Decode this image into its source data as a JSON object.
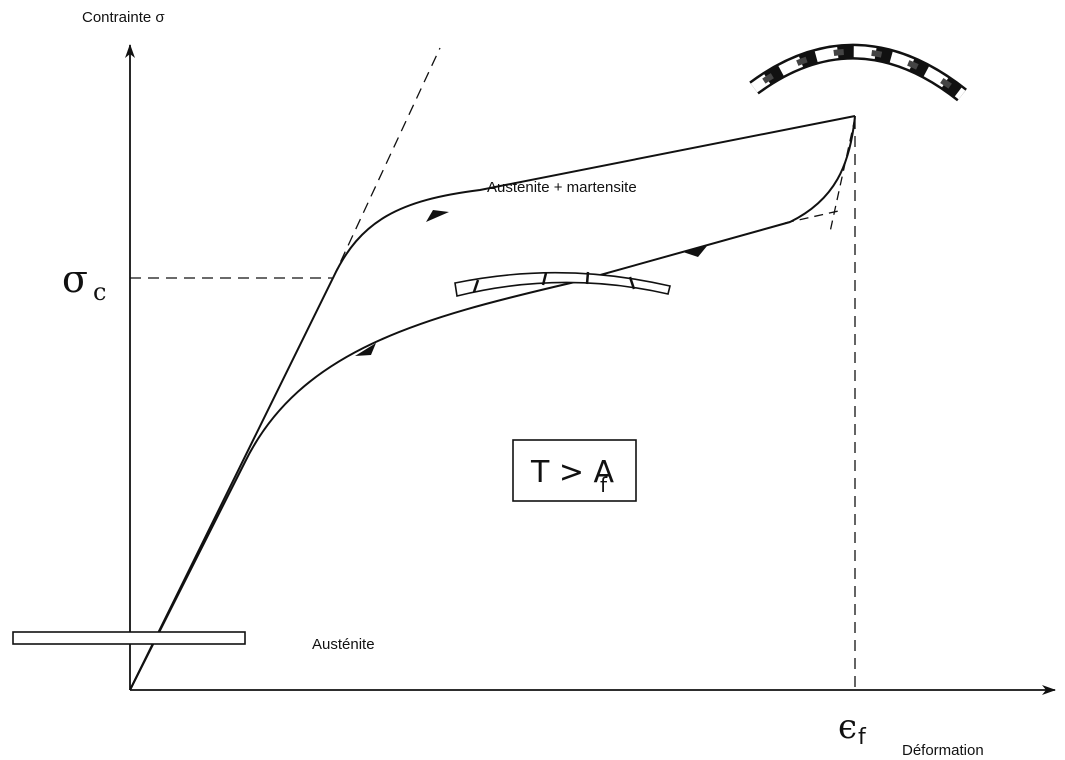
{
  "axes": {
    "y_label": "Contrainte σ",
    "x_label": "Déformation"
  },
  "annotations": {
    "sigma_symbol": "σ",
    "sigma_subscript": "c",
    "epsilon_symbol": "ϵ",
    "epsilon_subscript": "f",
    "loading_phase": "Austénite + martensite",
    "initial_phase": "Austénite",
    "condition_main": "T > A",
    "condition_subscript": "f"
  },
  "colors": {
    "ink": "#111111",
    "hatch": "#444444",
    "background": "#ffffff"
  }
}
